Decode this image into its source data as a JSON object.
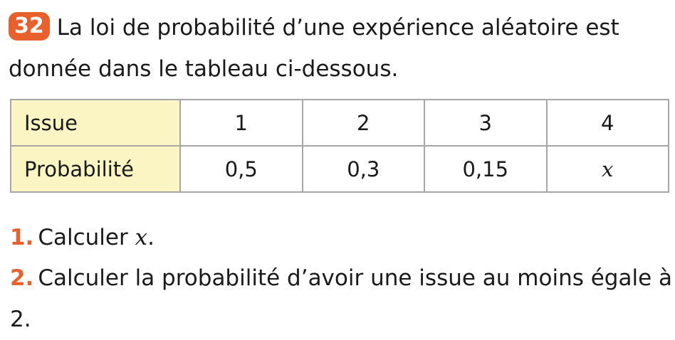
{
  "exercise": {
    "number": "32",
    "intro_text": "La loi de probabilité d’une expérience aléatoire est donnée dans le tableau ci-dessous."
  },
  "table": {
    "row_labels": [
      "Issue",
      "Probabilité"
    ],
    "issues": [
      "1",
      "2",
      "3",
      "4"
    ],
    "probabilities": [
      "0,5",
      "0,3",
      "0,15",
      "x"
    ]
  },
  "questions": [
    {
      "number": "1.",
      "text": "Calculer ",
      "variable": "x",
      "suffix": "."
    },
    {
      "number": "2.",
      "text": "Calculer la probabilité d’avoir une issue au moins égale à 2."
    }
  ],
  "colors": {
    "accent": "#e8602c",
    "header_cell_bg": "#fbf5c4",
    "border": "#a6a6a6"
  }
}
